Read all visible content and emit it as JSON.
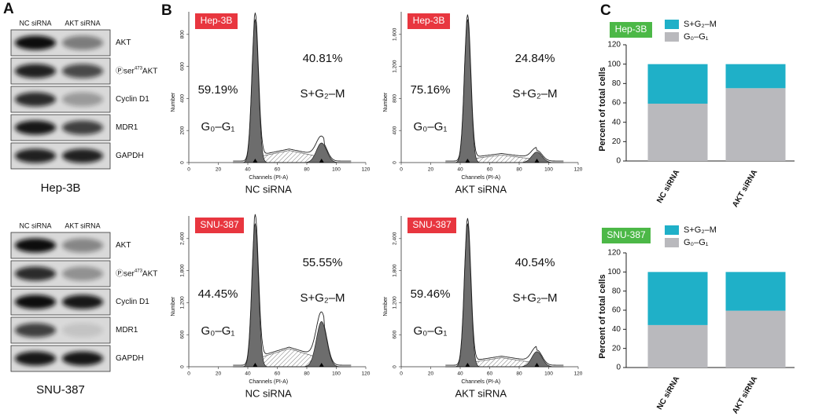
{
  "panel_labels": {
    "a": "A",
    "b": "B",
    "c": "C"
  },
  "blots": [
    {
      "cell_line": "Hep-3B",
      "lanes": [
        "NC siRNA",
        "AKT siRNA"
      ],
      "proteins": [
        "AKT",
        {
          "prefix": "Ⓟser",
          "sup": "473",
          "suffix": "AKT"
        },
        "Cyclin D1",
        "MDR1",
        "GAPDH"
      ]
    },
    {
      "cell_line": "SNU-387",
      "lanes": [
        "NC siRNA",
        "AKT siRNA"
      ],
      "proteins": [
        "AKT",
        {
          "prefix": "Ⓟser",
          "sup": "473",
          "suffix": "AKT"
        },
        "Cyclin D1",
        "MDR1",
        "GAPDH"
      ]
    }
  ],
  "flow": [
    {
      "cell_line": "Hep-3B",
      "condition": "NC siRNA",
      "g0g1_percent": "59.19%",
      "sg2m_percent": "40.81%",
      "g0g1_label": "G₀–G₁",
      "sg2m_label": "S+G₂–M",
      "x_title": "Channels (PI-A)",
      "y_title": "Number",
      "xticks": [
        "0",
        "20",
        "40",
        "60",
        "80",
        "100",
        "120"
      ],
      "yticks": [
        "0",
        "200",
        "400",
        "600",
        "800"
      ]
    },
    {
      "cell_line": "Hep-3B",
      "condition": "AKT siRNA",
      "g0g1_percent": "75.16%",
      "sg2m_percent": "24.84%",
      "g0g1_label": "G₀–G₁",
      "sg2m_label": "S+G₂–M",
      "x_title": "Channels (PI-A)",
      "y_title": "Number",
      "xticks": [
        "0",
        "20",
        "40",
        "60",
        "80",
        "100",
        "120"
      ],
      "yticks": [
        "0",
        "400",
        "800",
        "1,200",
        "1,600"
      ]
    },
    {
      "cell_line": "SNU-387",
      "condition": "NC siRNA",
      "g0g1_percent": "44.45%",
      "sg2m_percent": "55.55%",
      "g0g1_label": "G₀–G₁",
      "sg2m_label": "S+G₂–M",
      "x_title": "Channels (PI-A)",
      "y_title": "Number",
      "xticks": [
        "0",
        "20",
        "40",
        "60",
        "80",
        "100",
        "120"
      ],
      "yticks": [
        "0",
        "600",
        "1,200",
        "1,800",
        "2,400"
      ]
    },
    {
      "cell_line": "SNU-387",
      "condition": "AKT siRNA",
      "g0g1_percent": "59.46%",
      "sg2m_percent": "40.54%",
      "g0g1_label": "G₀–G₁",
      "sg2m_label": "S+G₂–M",
      "x_title": "Channels (PI-A)",
      "y_title": "Number",
      "xticks": [
        "0",
        "20",
        "40",
        "60",
        "80",
        "100",
        "120"
      ],
      "yticks": [
        "0",
        "600",
        "1,200",
        "1,800",
        "2,400"
      ]
    }
  ],
  "chart_data": [
    {
      "type": "bar",
      "stacked": true,
      "badge": "Hep-3B",
      "ylabel": "Percent of total cells",
      "categories": [
        "NC siRNA",
        "AKT siRNA"
      ],
      "series": [
        {
          "name": "S+G₂–M",
          "color": "#1fb0c8",
          "values": [
            40.81,
            24.84
          ]
        },
        {
          "name": "G₀–G₁",
          "color": "#b9b9bd",
          "values": [
            59.19,
            75.16
          ]
        }
      ],
      "ylim": [
        0,
        120
      ],
      "yticks": [
        0,
        20,
        40,
        60,
        80,
        100,
        120
      ]
    },
    {
      "type": "bar",
      "stacked": true,
      "badge": "SNU-387",
      "ylabel": "Percent of total cells",
      "categories": [
        "NC siRNA",
        "AKT siRNA"
      ],
      "series": [
        {
          "name": "S+G₂–M",
          "color": "#1fb0c8",
          "values": [
            55.55,
            40.54
          ]
        },
        {
          "name": "G₀–G₁",
          "color": "#b9b9bd",
          "values": [
            44.45,
            59.46
          ]
        }
      ],
      "ylim": [
        0,
        120
      ],
      "yticks": [
        0,
        20,
        40,
        60,
        80,
        100,
        120
      ]
    }
  ]
}
